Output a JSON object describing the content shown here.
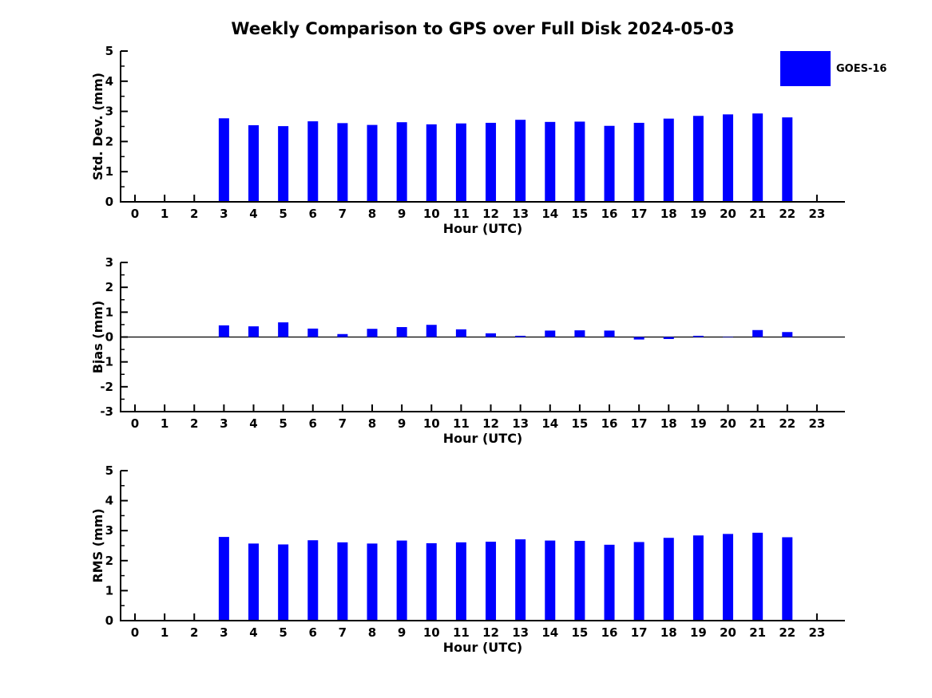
{
  "figure": {
    "title": "Weekly Comparison to GPS over Full Disk 2024-05-03",
    "background": "#FFFFFF"
  },
  "legend": {
    "position": "outside-top-right",
    "items": [
      {
        "label": "GOES-16",
        "color": "#0000FF",
        "swatch": "filled-rect"
      }
    ]
  },
  "colors": {
    "bar": "#0000FF",
    "axis": "#000000",
    "text": "#000000",
    "background": "#FFFFFF"
  },
  "chart_data": [
    {
      "type": "bar",
      "title": "",
      "xlabel": "Hour (UTC)",
      "ylabel": "Std. Dev. (mm)",
      "ylim": [
        0,
        5
      ],
      "yticks": [
        0,
        1,
        2,
        3,
        4,
        5
      ],
      "minor_ytick_step": 0.5,
      "grid": false,
      "zero_line": false,
      "categories": [
        "0",
        "1",
        "2",
        "3",
        "4",
        "5",
        "6",
        "7",
        "8",
        "9",
        "10",
        "11",
        "12",
        "13",
        "14",
        "15",
        "16",
        "17",
        "18",
        "19",
        "20",
        "21",
        "22",
        "23"
      ],
      "series": [
        {
          "name": "GOES-16",
          "color": "#0000FF",
          "values": [
            null,
            null,
            null,
            2.77,
            2.54,
            2.51,
            2.67,
            2.61,
            2.55,
            2.64,
            2.57,
            2.6,
            2.62,
            2.72,
            2.65,
            2.66,
            2.52,
            2.62,
            2.76,
            2.85,
            2.9,
            2.93,
            2.8,
            null
          ]
        }
      ]
    },
    {
      "type": "bar",
      "title": "",
      "xlabel": "Hour (UTC)",
      "ylabel": "Bias (mm)",
      "ylim": [
        -3,
        3
      ],
      "yticks": [
        -3,
        -2,
        -1,
        0,
        1,
        2,
        3
      ],
      "minor_ytick_step": 0.5,
      "grid": false,
      "zero_line": true,
      "categories": [
        "0",
        "1",
        "2",
        "3",
        "4",
        "5",
        "6",
        "7",
        "8",
        "9",
        "10",
        "11",
        "12",
        "13",
        "14",
        "15",
        "16",
        "17",
        "18",
        "19",
        "20",
        "21",
        "22",
        "23"
      ],
      "series": [
        {
          "name": "GOES-16",
          "color": "#0000FF",
          "values": [
            null,
            null,
            null,
            0.47,
            0.43,
            0.59,
            0.34,
            0.12,
            0.33,
            0.4,
            0.49,
            0.31,
            0.15,
            0.05,
            0.26,
            0.27,
            0.26,
            -0.1,
            -0.08,
            0.05,
            0.01,
            0.28,
            0.2,
            null
          ]
        }
      ]
    },
    {
      "type": "bar",
      "title": "",
      "xlabel": "Hour (UTC)",
      "ylabel": "RMS (mm)",
      "ylim": [
        0,
        5
      ],
      "yticks": [
        0,
        1,
        2,
        3,
        4,
        5
      ],
      "minor_ytick_step": 0.5,
      "grid": false,
      "zero_line": false,
      "categories": [
        "0",
        "1",
        "2",
        "3",
        "4",
        "5",
        "6",
        "7",
        "8",
        "9",
        "10",
        "11",
        "12",
        "13",
        "14",
        "15",
        "16",
        "17",
        "18",
        "19",
        "20",
        "21",
        "22",
        "23"
      ],
      "series": [
        {
          "name": "GOES-16",
          "color": "#0000FF",
          "values": [
            null,
            null,
            null,
            2.79,
            2.57,
            2.54,
            2.68,
            2.61,
            2.57,
            2.67,
            2.58,
            2.61,
            2.63,
            2.71,
            2.67,
            2.66,
            2.53,
            2.62,
            2.76,
            2.84,
            2.89,
            2.93,
            2.78,
            null
          ]
        }
      ]
    }
  ]
}
